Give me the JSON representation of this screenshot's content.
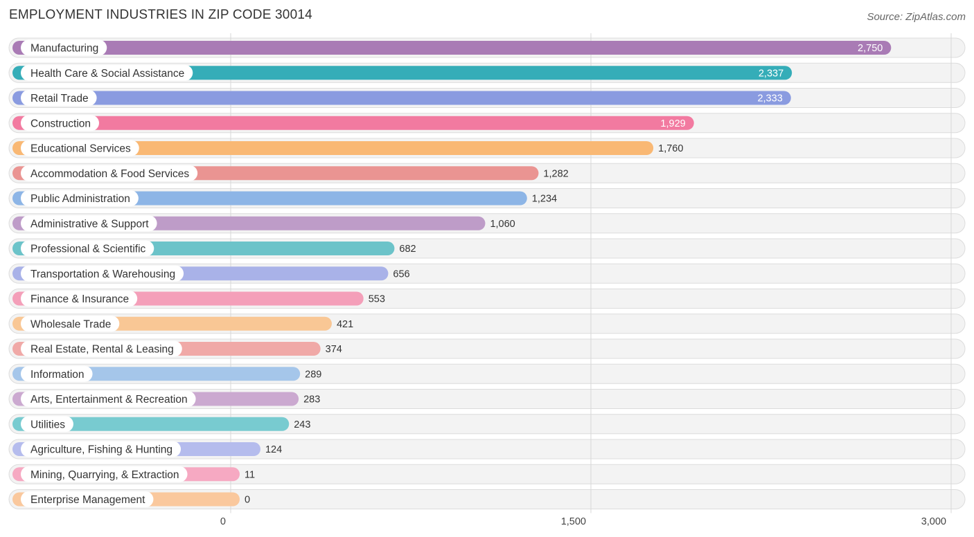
{
  "title": "EMPLOYMENT INDUSTRIES IN ZIP CODE 30014",
  "source": "Source: ZipAtlas.com",
  "chart_data": {
    "type": "bar",
    "orientation": "horizontal",
    "title": "EMPLOYMENT INDUSTRIES IN ZIP CODE 30014",
    "xlabel": "",
    "ylabel": "",
    "xlim": [
      0,
      3000
    ],
    "xticks": [
      0,
      1500,
      3000
    ],
    "xtick_labels": [
      "0",
      "1,500",
      "3,000"
    ],
    "grid": true,
    "categories": [
      "Manufacturing",
      "Health Care & Social Assistance",
      "Retail Trade",
      "Construction",
      "Educational Services",
      "Accommodation & Food Services",
      "Public Administration",
      "Administrative & Support",
      "Professional & Scientific",
      "Transportation & Warehousing",
      "Finance & Insurance",
      "Wholesale Trade",
      "Real Estate, Rental & Leasing",
      "Information",
      "Arts, Entertainment & Recreation",
      "Utilities",
      "Agriculture, Fishing & Hunting",
      "Mining, Quarrying, & Extraction",
      "Enterprise Management"
    ],
    "values": [
      2750,
      2337,
      2333,
      1929,
      1760,
      1282,
      1234,
      1060,
      682,
      656,
      553,
      421,
      374,
      289,
      283,
      243,
      124,
      11,
      0
    ],
    "value_labels": [
      "2,750",
      "2,337",
      "2,333",
      "1,929",
      "1,760",
      "1,282",
      "1,234",
      "1,060",
      "682",
      "656",
      "553",
      "421",
      "374",
      "289",
      "283",
      "243",
      "124",
      "11",
      "0"
    ],
    "colors": [
      "#a97bb5",
      "#35adb8",
      "#8a9be0",
      "#f27aa0",
      "#f9b874",
      "#ea9492",
      "#8db5e6",
      "#be9cc8",
      "#6cc3c9",
      "#a9b2e8",
      "#f49fb9",
      "#f9c795",
      "#f0a9a7",
      "#a5c6ea",
      "#cba9d0",
      "#78cbd0",
      "#b5bced",
      "#f6a9c2",
      "#fac89d"
    ]
  }
}
